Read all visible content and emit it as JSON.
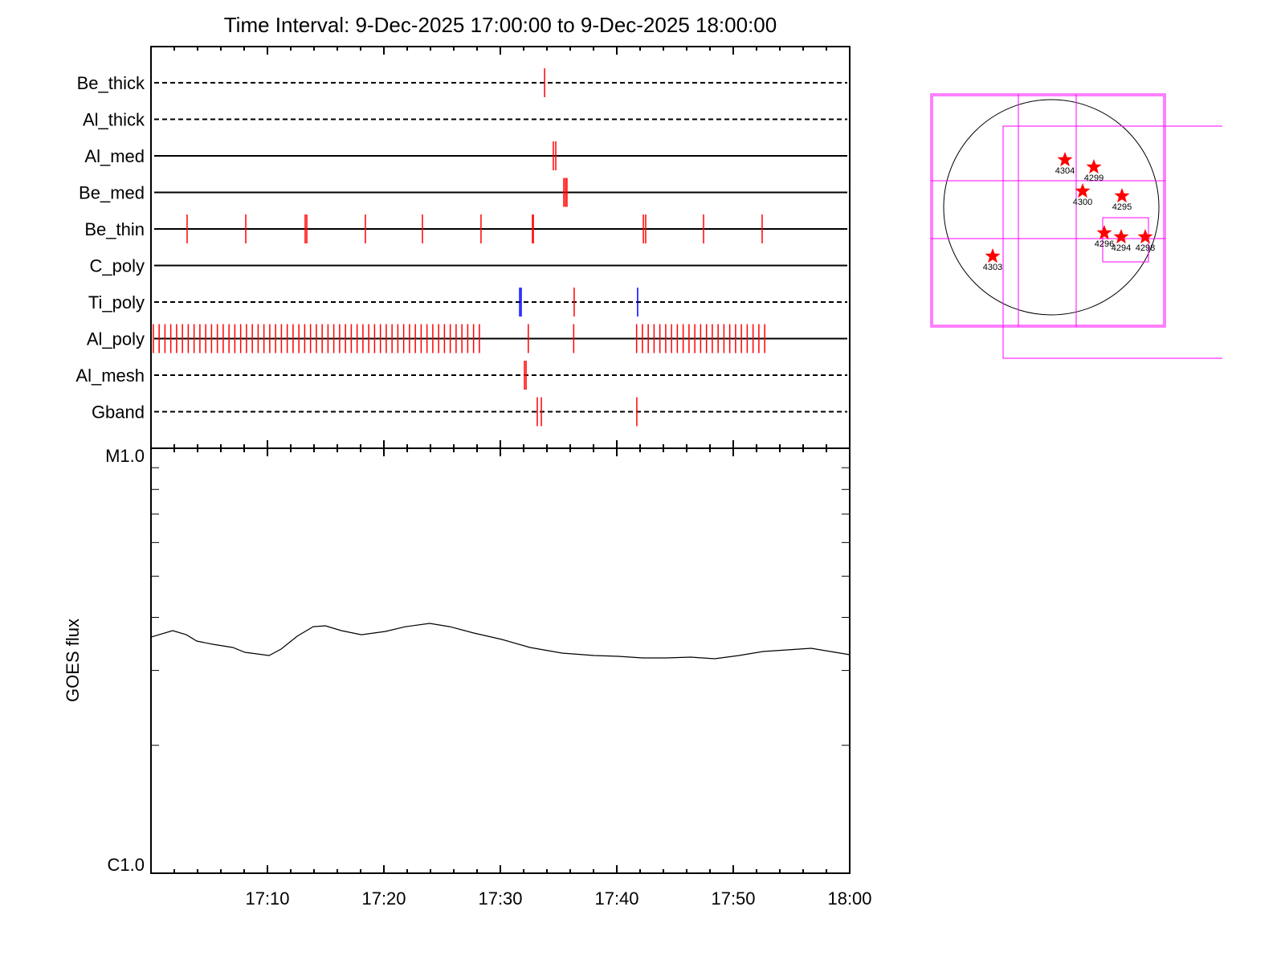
{
  "chart_data": [
    {
      "type": "event",
      "title": "Time Interval:  9-Dec-2025 17:00:00 to  9-Dec-2025 18:00:00",
      "xlim": [
        0,
        60
      ],
      "xticks": [
        0,
        10,
        20,
        30,
        40,
        50,
        60
      ],
      "x_minor_interval": 2,
      "rows": [
        {
          "name": "Be_thick",
          "line": "dashed",
          "groups": [
            {
              "color": "#ff0000",
              "times": [
                33.8
              ]
            }
          ]
        },
        {
          "name": "Al_thick",
          "line": "dashed",
          "groups": [
            {
              "color": "#ff0000",
              "times": []
            }
          ]
        },
        {
          "name": "Al_med",
          "line": "solid",
          "groups": [
            {
              "color": "#ff0000",
              "times": [
                34.55,
                34.76
              ]
            }
          ]
        },
        {
          "name": "Be_med",
          "line": "solid",
          "groups": [
            {
              "color": "#ff0000",
              "times": [
                35.45,
                35.59,
                35.72
              ]
            }
          ]
        },
        {
          "name": "Be_thin",
          "line": "solid",
          "groups": [
            {
              "color": "#ff0000",
              "times": [
                3.1,
                8.14,
                13.24,
                13.38,
                18.41,
                23.31,
                28.34,
                32.76,
                32.83,
                42.28,
                42.48,
                47.45,
                52.48
              ]
            }
          ]
        },
        {
          "name": "C_poly",
          "line": "solid",
          "groups": [
            {
              "color": "#ff0000",
              "times": []
            }
          ]
        },
        {
          "name": "Ti_poly",
          "line": "dashed",
          "groups": [
            {
              "color": "#ff0000",
              "times": [
                36.34
              ]
            },
            {
              "color": "#0000ff",
              "times": [
                31.66,
                31.79,
                41.79
              ]
            }
          ]
        },
        {
          "name": "Al_poly",
          "line": "solid",
          "groups": [
            {
              "color": "#ff0000",
              "times": [
                0.2,
                0.7,
                1.2,
                1.7,
                2.2,
                2.7,
                3.2,
                3.7,
                4.2,
                4.7,
                5.2,
                5.7,
                6.2,
                6.7,
                7.2,
                7.7,
                8.2,
                8.7,
                9.2,
                9.7,
                10.2,
                10.7,
                11.2,
                11.7,
                12.2,
                12.7,
                13.2,
                13.7,
                14.2,
                14.7,
                15.2,
                15.7,
                16.2,
                16.7,
                17.2,
                17.7,
                18.2,
                18.7,
                19.2,
                19.7,
                20.2,
                20.7,
                21.2,
                21.7,
                22.2,
                22.7,
                23.2,
                23.7,
                24.2,
                24.7,
                25.2,
                25.7,
                26.2,
                26.7,
                27.2,
                27.7,
                28.2,
                32.4,
                36.3,
                41.7,
                42.2,
                42.7,
                43.2,
                43.7,
                44.2,
                44.7,
                45.2,
                45.7,
                46.2,
                46.7,
                47.2,
                47.7,
                48.2,
                48.7,
                49.2,
                49.7,
                50.2,
                50.7,
                51.2,
                51.7,
                52.2,
                52.7
              ]
            }
          ]
        },
        {
          "name": "Al_mesh",
          "line": "dashed",
          "groups": [
            {
              "color": "#ff0000",
              "times": [
                32.07,
                32.21
              ]
            }
          ]
        },
        {
          "name": "Gband",
          "line": "dashed",
          "groups": [
            {
              "color": "#ff0000",
              "times": [
                33.17,
                33.52,
                41.72
              ]
            }
          ]
        }
      ]
    },
    {
      "type": "line",
      "ylabel": "GOES flux",
      "log_scale": true,
      "color": "#000000",
      "xlim": [
        0,
        60
      ],
      "xticks": [
        {
          "value": 10,
          "label": "17:10"
        },
        {
          "value": 20,
          "label": "17:20"
        },
        {
          "value": 30,
          "label": "17:30"
        },
        {
          "value": 40,
          "label": "17:40"
        },
        {
          "value": 50,
          "label": "17:50"
        },
        {
          "value": 60,
          "label": "18:00"
        }
      ],
      "x_minor_interval": 2,
      "ylim": [
        1e-06,
        1e-05
      ],
      "yticks": [
        {
          "value": 1e-06,
          "label": "C1.0"
        },
        {
          "value": 1e-05,
          "label": "M1.0"
        }
      ],
      "x": [
        0,
        1.86,
        3.03,
        3.93,
        5.31,
        7.03,
        8.07,
        10.14,
        11.17,
        12.55,
        13.93,
        14.97,
        16.34,
        18.07,
        20.14,
        21.86,
        23.93,
        25.66,
        27.72,
        30.14,
        32.55,
        35.31,
        38.07,
        40.14,
        42.21,
        44.28,
        46.34,
        48.41,
        50.48,
        52.55,
        54.62,
        56.69,
        58.76,
        60
      ],
      "values": [
        3.594e-06,
        3.723e-06,
        3.642e-06,
        3.518e-06,
        3.458e-06,
        3.398e-06,
        3.31e-06,
        3.253e-06,
        3.368e-06,
        3.611e-06,
        3.804e-06,
        3.821e-06,
        3.723e-06,
        3.642e-06,
        3.707e-06,
        3.804e-06,
        3.871e-06,
        3.804e-06,
        3.675e-06,
        3.549e-06,
        3.398e-06,
        3.296e-06,
        3.253e-06,
        3.239e-06,
        3.211e-06,
        3.211e-06,
        3.225e-06,
        3.197e-06,
        3.253e-06,
        3.325e-06,
        3.354e-06,
        3.383e-06,
        3.31e-06,
        3.267e-06
      ]
    }
  ],
  "sun_map": {
    "regions": [
      "4304",
      "4299",
      "4300",
      "4295",
      "4296",
      "4294",
      "4298",
      "4303"
    ]
  }
}
